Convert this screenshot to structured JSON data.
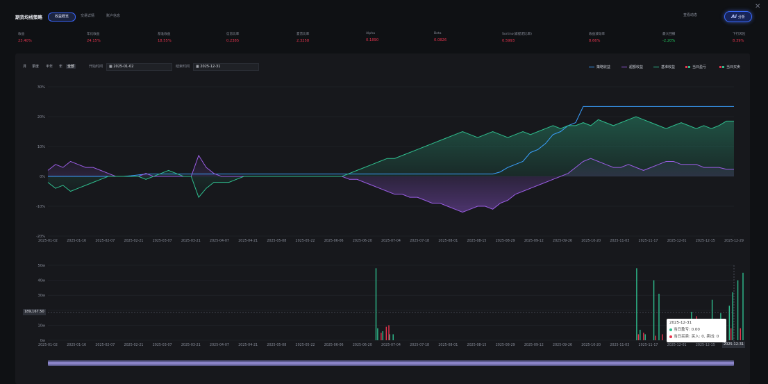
{
  "header": {
    "title": "期货均线策略",
    "tabs": [
      {
        "label": "收益概览",
        "active": true
      },
      {
        "label": "交易详情",
        "active": false
      },
      {
        "label": "账户信息",
        "active": false
      }
    ],
    "view_button": "查看动态",
    "ai_button": "分析",
    "ai_badge": "Ai"
  },
  "metrics": [
    {
      "label": "收益",
      "value": "23.40%",
      "color": "#e8344e"
    },
    {
      "label": "年化收益",
      "value": "24.15%",
      "color": "#e8344e"
    },
    {
      "label": "基准收益",
      "value": "18.55%",
      "color": "#e8344e"
    },
    {
      "label": "信息比率",
      "value": "0.2385",
      "color": "#e8344e"
    },
    {
      "label": "夏普比率",
      "value": "2.3258",
      "color": "#e8344e"
    },
    {
      "label": "Alpha",
      "value": "0.1890",
      "color": "#e8344e"
    },
    {
      "label": "Beta",
      "value": "0.0826",
      "color": "#e8344e"
    },
    {
      "label": "Sortino(索提诺比率)",
      "value": "0.5993",
      "color": "#e8344e"
    },
    {
      "label": "收益波动率",
      "value": "8.66%",
      "color": "#e8344e"
    },
    {
      "label": "最大回撤",
      "value": "-2.20%",
      "color": "#22c55e"
    },
    {
      "label": "下行风险",
      "value": "8.39%",
      "color": "#e8344e"
    }
  ],
  "controls": {
    "ranges": [
      "月",
      "季度",
      "半年",
      "年",
      "全部"
    ],
    "selected_range": "全部",
    "start_label": "开始时间",
    "start_date": "2025-01-02",
    "end_label": "结束时间",
    "end_date": "2025-12-31"
  },
  "legend": [
    {
      "label": "策略收益",
      "color": "#3aa0ff",
      "kind": "line"
    },
    {
      "label": "超额收益",
      "color": "#9b5de5",
      "kind": "line"
    },
    {
      "label": "基准收益",
      "color": "#2fbf8f",
      "kind": "line"
    },
    {
      "label": "当日盈亏",
      "color": "#e8344e",
      "color2": "#2fbf8f",
      "kind": "square"
    },
    {
      "label": "当日买卖",
      "color": "#e8344e",
      "color2": "#2fbf8f",
      "kind": "square"
    }
  ],
  "tooltip": {
    "date": "2025-12-31",
    "pnl": "当日盈亏: 0.00",
    "trade": "当日买卖: 买入: 0, 卖出: 0"
  },
  "cursor": {
    "y_value": "189,167.50",
    "x_value": "2025-12-31"
  },
  "chart_data": [
    {
      "type": "line",
      "x_ticks": [
        "2025-01-02",
        "2025-01-16",
        "2025-02-07",
        "2025-02-21",
        "2025-03-07",
        "2025-03-21",
        "2025-04-07",
        "2025-04-21",
        "2025-05-08",
        "2025-05-22",
        "2025-06-06",
        "2025-06-20",
        "2025-07-04",
        "2025-07-18",
        "2025-08-01",
        "2025-08-15",
        "2025-08-29",
        "2025-09-12",
        "2025-09-26",
        "2025-10-20",
        "2025-11-03",
        "2025-11-17",
        "2025-12-01",
        "2025-12-15",
        "2025-12-29"
      ],
      "y_ticks": [
        "-20%",
        "-10%",
        "0%",
        "10%",
        "20%",
        "30%"
      ],
      "ylim": [
        -20,
        30
      ],
      "series": [
        {
          "name": "策略收益",
          "color": "#3aa0ff",
          "values": [
            0,
            0,
            0,
            0,
            0,
            0,
            0,
            0,
            0,
            0,
            0,
            0.2,
            0.5,
            0.8,
            0.8,
            0.8,
            0.8,
            0.8,
            0.8,
            0.8,
            0.8,
            0.8,
            0.8,
            0.8,
            0.8,
            0.8,
            0.8,
            0.8,
            0.8,
            0.8,
            0.8,
            0.8,
            0.8,
            0.8,
            0.8,
            0.8,
            0.8,
            0.8,
            0.8,
            0.8,
            0.8,
            0.8,
            0.8,
            0.8,
            0.8,
            0.8,
            0.8,
            0.8,
            0.8,
            0.8,
            0.8,
            0.8,
            0.8,
            0.8,
            0.8,
            0.8,
            0.8,
            0.8,
            0.8,
            0.8,
            1.5,
            3,
            4,
            5,
            8,
            9,
            11,
            14,
            15,
            17,
            18,
            23.4,
            23.4,
            23.4,
            23.4,
            23.4,
            23.4,
            23.4,
            23.4,
            23.4,
            23.4,
            23.4,
            23.4,
            23.4,
            23.4,
            23.4,
            23.4,
            23.4,
            23.4,
            23.4,
            23.4,
            23.4
          ]
        },
        {
          "name": "超额收益",
          "color": "#9b5de5",
          "values": [
            2,
            4,
            3,
            5,
            4,
            3,
            3,
            2,
            1,
            0,
            0,
            0,
            0,
            1,
            0,
            0,
            0,
            0,
            0,
            0,
            7,
            3,
            1,
            0,
            0,
            0,
            0,
            0,
            0,
            0,
            0,
            0,
            0,
            0,
            0,
            0,
            0,
            0,
            0,
            0,
            -1,
            -1,
            -2,
            -3,
            -4,
            -5,
            -6,
            -6,
            -7,
            -7,
            -8,
            -9,
            -9,
            -10,
            -11,
            -12,
            -11,
            -10,
            -10,
            -11,
            -9,
            -8,
            -6,
            -5,
            -4,
            -3,
            -2,
            -1,
            0,
            1,
            3,
            5,
            6,
            5,
            4,
            3,
            3,
            4,
            3,
            2,
            3,
            4,
            5,
            5,
            4,
            4,
            4,
            3,
            3,
            3,
            2.4,
            2.4
          ]
        },
        {
          "name": "基准收益",
          "color": "#2fbf8f",
          "values": [
            -2,
            -4,
            -3,
            -5,
            -4,
            -3,
            -2,
            -1,
            0,
            0,
            0,
            0,
            0,
            -1,
            0,
            1,
            2,
            1,
            0,
            0,
            -7,
            -4,
            -2,
            -2,
            -2,
            -1,
            0,
            0,
            0,
            0,
            0,
            0,
            0,
            0,
            0,
            0,
            0,
            0,
            0,
            0,
            1,
            2,
            3,
            4,
            5,
            6,
            6,
            7,
            8,
            9,
            10,
            11,
            12,
            13,
            14,
            15,
            14,
            13,
            14,
            15,
            14,
            13,
            14,
            15,
            14,
            15,
            16,
            17,
            16,
            17,
            17,
            18,
            17,
            19,
            18,
            17,
            18,
            19,
            20,
            19,
            18,
            17,
            16,
            17,
            18,
            17,
            16,
            17,
            16,
            17,
            18.5,
            18.5
          ]
        }
      ]
    },
    {
      "type": "bar",
      "x_ticks": [
        "2025-01-02",
        "2025-01-16",
        "2025-02-07",
        "2025-02-21",
        "2025-03-07",
        "2025-03-21",
        "2025-04-07",
        "2025-04-21",
        "2025-05-08",
        "2025-05-22",
        "2025-06-06",
        "2025-06-20",
        "2025-07-04",
        "2025-07-18",
        "2025-08-01",
        "2025-08-15",
        "2025-08-29",
        "2025-09-12",
        "2025-09-26",
        "2025-10-20",
        "2025-11-03",
        "2025-11-17",
        "2025-12-01",
        "2025-12-15",
        "2025-12-29"
      ],
      "y_ticks": [
        "0w",
        "10w",
        "20w",
        "30w",
        "40w",
        "50w"
      ],
      "ylim": [
        0,
        50
      ],
      "series": [
        {
          "name": "当日盈亏",
          "color": "#2fbf8f",
          "points": [
            [
              19.1,
              48
            ],
            [
              19.2,
              8
            ],
            [
              19.5,
              6
            ],
            [
              19.9,
              4
            ],
            [
              20.1,
              4
            ],
            [
              34.3,
              48
            ],
            [
              34.5,
              7
            ],
            [
              34.8,
              4
            ],
            [
              35.3,
              40
            ],
            [
              35.6,
              31
            ],
            [
              36.1,
              5
            ],
            [
              36.5,
              3
            ],
            [
              37,
              4
            ],
            [
              37.5,
              19
            ],
            [
              38.2,
              3
            ],
            [
              38.7,
              27
            ],
            [
              39,
              2
            ],
            [
              39.2,
              18
            ],
            [
              39.7,
              23
            ],
            [
              39.9,
              32
            ],
            [
              40.2,
              40
            ],
            [
              40.5,
              45
            ]
          ]
        },
        {
          "name": "当日买卖",
          "color": "#e8344e",
          "points": [
            [
              19.4,
              5
            ],
            [
              19.7,
              9
            ],
            [
              19.85,
              10
            ],
            [
              34.4,
              4
            ],
            [
              34.7,
              5
            ],
            [
              35.4,
              3
            ],
            [
              35.8,
              4
            ],
            [
              36.3,
              3
            ],
            [
              36.8,
              3
            ],
            [
              37.6,
              6
            ],
            [
              37.8,
              16
            ],
            [
              38,
              8
            ],
            [
              38.4,
              9
            ],
            [
              38.9,
              5
            ],
            [
              39.4,
              6
            ],
            [
              39.8,
              8
            ],
            [
              40.35,
              8
            ]
          ]
        }
      ]
    }
  ]
}
